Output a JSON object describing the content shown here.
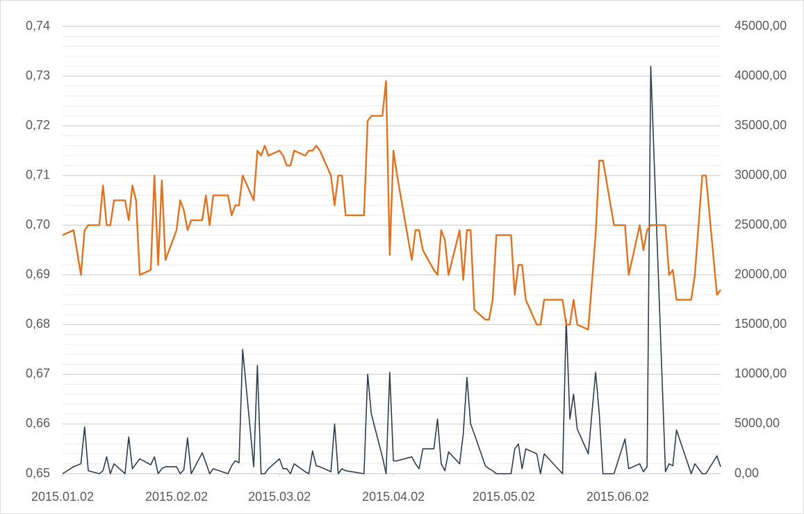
{
  "chart_data": {
    "type": "line",
    "x": [
      "2015.01.02",
      "2015.01.05",
      "2015.01.07",
      "2015.01.08",
      "2015.01.09",
      "2015.01.12",
      "2015.01.13",
      "2015.01.14",
      "2015.01.15",
      "2015.01.16",
      "2015.01.19",
      "2015.01.20",
      "2015.01.21",
      "2015.01.22",
      "2015.01.23",
      "2015.01.26",
      "2015.01.27",
      "2015.01.28",
      "2015.01.29",
      "2015.01.30",
      "2015.02.02",
      "2015.02.03",
      "2015.02.04",
      "2015.02.05",
      "2015.02.06",
      "2015.02.09",
      "2015.02.10",
      "2015.02.11",
      "2015.02.12",
      "2015.02.16",
      "2015.02.17",
      "2015.02.18",
      "2015.02.19",
      "2015.02.20",
      "2015.02.23",
      "2015.02.24",
      "2015.02.25",
      "2015.02.26",
      "2015.02.27",
      "2015.03.02",
      "2015.03.03",
      "2015.03.04",
      "2015.03.05",
      "2015.03.06",
      "2015.03.09",
      "2015.03.10",
      "2015.03.11",
      "2015.03.12",
      "2015.03.13",
      "2015.03.16",
      "2015.03.17",
      "2015.03.18",
      "2015.03.19",
      "2015.03.20",
      "2015.03.25",
      "2015.03.26",
      "2015.03.27",
      "2015.03.30",
      "2015.03.31",
      "2015.04.01",
      "2015.04.02",
      "2015.04.03",
      "2015.04.07",
      "2015.04.08",
      "2015.04.09",
      "2015.04.10",
      "2015.04.13",
      "2015.04.14",
      "2015.04.15",
      "2015.04.16",
      "2015.04.17",
      "2015.04.20",
      "2015.04.21",
      "2015.04.22",
      "2015.04.23",
      "2015.04.24",
      "2015.04.27",
      "2015.04.28",
      "2015.04.29",
      "2015.04.30",
      "2015.05.04",
      "2015.05.05",
      "2015.05.06",
      "2015.05.07",
      "2015.05.08",
      "2015.05.11",
      "2015.05.12",
      "2015.05.13",
      "2015.05.18",
      "2015.05.19",
      "2015.05.20",
      "2015.05.21",
      "2015.05.22",
      "2015.05.25",
      "2015.05.27",
      "2015.05.28",
      "2015.05.29",
      "2015.06.01",
      "2015.06.04",
      "2015.06.05",
      "2015.06.08",
      "2015.06.09",
      "2015.06.10",
      "2015.06.11",
      "2015.06.15",
      "2015.06.16",
      "2015.06.17",
      "2015.06.18",
      "2015.06.22",
      "2015.06.23",
      "2015.06.25",
      "2015.06.26",
      "2015.06.29",
      "2015.06.30"
    ],
    "xlim": [
      "2015.01.02",
      "2015.06.30"
    ],
    "xticks": [
      "2015.01.02",
      "2015.02.02",
      "2015.03.02",
      "2015.04.02",
      "2015.05.02",
      "2015.06.02"
    ],
    "ylim": [
      0.65,
      0.74
    ],
    "yticks": [
      {
        "value": 0.65,
        "label": "0,65"
      },
      {
        "value": 0.66,
        "label": "0,66"
      },
      {
        "value": 0.67,
        "label": "0,67"
      },
      {
        "value": 0.68,
        "label": "0,68"
      },
      {
        "value": 0.69,
        "label": "0,69"
      },
      {
        "value": 0.7,
        "label": "0,70"
      },
      {
        "value": 0.71,
        "label": "0,71"
      },
      {
        "value": 0.72,
        "label": "0,72"
      },
      {
        "value": 0.73,
        "label": "0,73"
      },
      {
        "value": 0.74,
        "label": "0,74"
      }
    ],
    "y2lim": [
      0,
      45000
    ],
    "y2ticks": [
      {
        "value": 0,
        "label": "0,00"
      },
      {
        "value": 5000,
        "label": "5000,00"
      },
      {
        "value": 10000,
        "label": "10000,00"
      },
      {
        "value": 15000,
        "label": "15000,00"
      },
      {
        "value": 20000,
        "label": "20000,00"
      },
      {
        "value": 25000,
        "label": "25000,00"
      },
      {
        "value": 30000,
        "label": "30000,00"
      },
      {
        "value": 35000,
        "label": "35000,00"
      },
      {
        "value": 40000,
        "label": "40000,00"
      },
      {
        "value": 45000,
        "label": "45000,00"
      }
    ],
    "grid": true,
    "series": [
      {
        "color": "#e2711d",
        "values": [
          0.698,
          0.699,
          0.69,
          0.699,
          0.7,
          0.7,
          0.708,
          0.7,
          0.7,
          0.705,
          0.705,
          0.701,
          0.708,
          0.705,
          0.69,
          0.691,
          0.71,
          0.692,
          0.709,
          0.693,
          0.699,
          0.705,
          0.703,
          0.699,
          0.701,
          0.701,
          0.706,
          0.7,
          0.706,
          0.706,
          0.702,
          0.704,
          0.704,
          0.71,
          0.705,
          0.715,
          0.714,
          0.716,
          0.714,
          0.715,
          0.714,
          0.712,
          0.712,
          0.715,
          0.714,
          0.715,
          0.715,
          0.716,
          0.715,
          0.71,
          0.704,
          0.71,
          0.71,
          0.702,
          0.702,
          0.721,
          0.722,
          0.722,
          0.729,
          0.694,
          0.715,
          0.71,
          0.693,
          0.699,
          0.699,
          0.695,
          0.691,
          0.69,
          0.699,
          0.697,
          0.69,
          0.699,
          0.689,
          0.699,
          0.699,
          0.683,
          0.681,
          0.681,
          0.685,
          0.698,
          0.698,
          0.686,
          0.692,
          0.692,
          0.685,
          0.68,
          0.68,
          0.685,
          0.685,
          0.68,
          0.68,
          0.685,
          0.68,
          0.679,
          0.698,
          0.713,
          0.713,
          0.7,
          0.7,
          0.69,
          0.7,
          0.695,
          0.699,
          0.7,
          0.7,
          0.69,
          0.691,
          0.685,
          0.685,
          0.69,
          0.71,
          0.71,
          0.686,
          0.687
        ]
      },
      {
        "color": "#2e3a4d",
        "axis": "y2",
        "values": [
          0,
          700,
          1000,
          4700,
          300,
          0,
          300,
          1700,
          0,
          1000,
          0,
          3700,
          500,
          1000,
          1500,
          900,
          1700,
          0,
          500,
          700,
          700,
          0,
          400,
          3600,
          0,
          2100,
          1100,
          0,
          500,
          0,
          800,
          1300,
          1100,
          12500,
          700,
          10900,
          0,
          0,
          500,
          1500,
          500,
          500,
          0,
          1000,
          200,
          0,
          2300,
          800,
          700,
          200,
          5000,
          0,
          500,
          300,
          0,
          10000,
          6000,
          1700,
          0,
          10200,
          1300,
          1300,
          1700,
          1000,
          500,
          2500,
          2500,
          5500,
          1000,
          300,
          2200,
          1000,
          4000,
          9700,
          5000,
          4000,
          800,
          500,
          300,
          0,
          0,
          2500,
          3000,
          500,
          2500,
          2000,
          0,
          2000,
          0,
          15500,
          5500,
          8000,
          4500,
          2000,
          10200,
          6000,
          0,
          0,
          3500,
          500,
          1000,
          200,
          700,
          41000,
          200,
          1000,
          800,
          4400,
          0,
          1000,
          0,
          0,
          1800,
          700
        ]
      }
    ]
  }
}
